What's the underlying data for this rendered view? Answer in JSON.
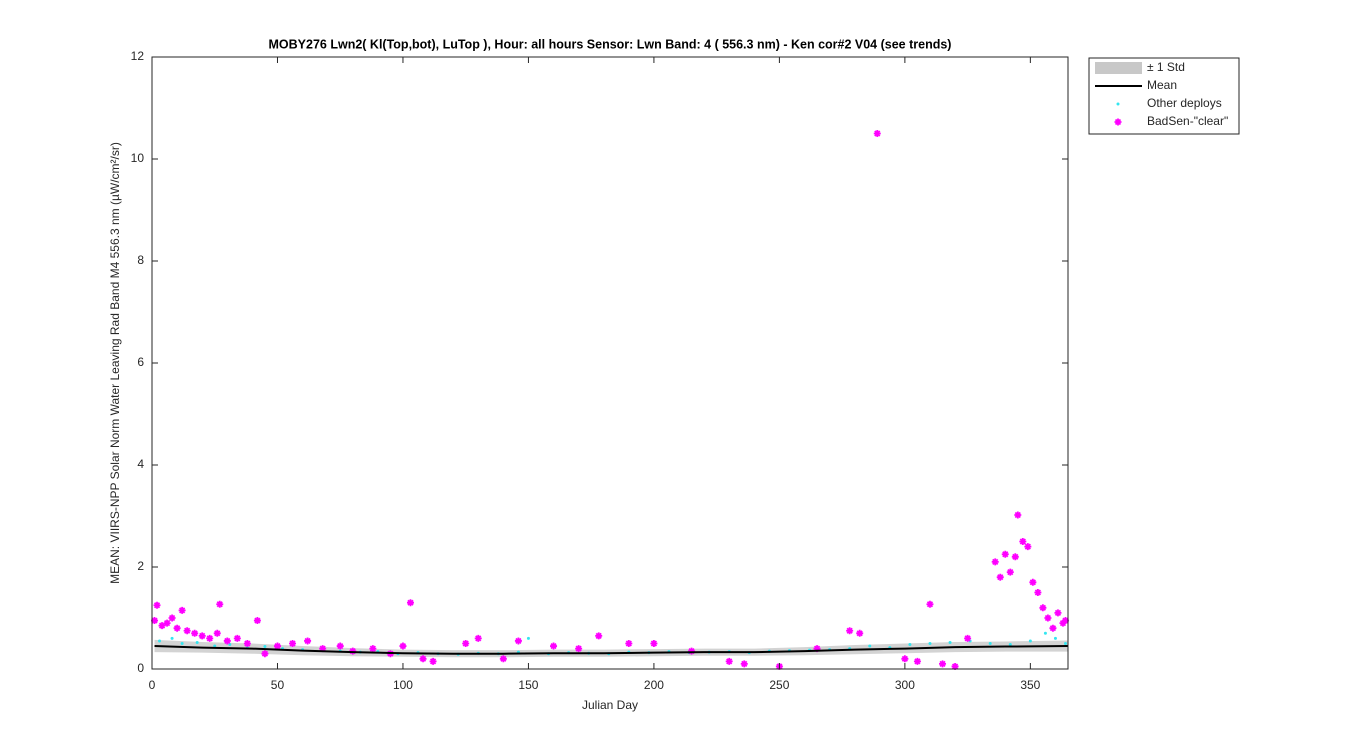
{
  "chart_data": {
    "type": "scatter",
    "title": "MOBY276   Lwn2( Kl(Top,bot), LuTop ),   Hour: all hours  Sensor: Lwn Band: 4 ( 556.3 nm)  - Ken cor#2 V04 (see trends)",
    "xlabel": "Julian Day",
    "ylabel": "MEAN: VIIRS-NPP Solar Norm Water Leaving Rad Band M4 556.3 nm (µW/cm²/sr)",
    "xlim": [
      0,
      365
    ],
    "ylim": [
      0,
      12
    ],
    "xticks": [
      0,
      50,
      100,
      150,
      200,
      250,
      300,
      350
    ],
    "yticks": [
      0,
      2,
      4,
      6,
      8,
      10,
      12
    ],
    "series": [
      {
        "name": "± 1 Std",
        "style": "band",
        "color": "#c8c8c8",
        "x": [
          1,
          20,
          40,
          60,
          80,
          100,
          120,
          140,
          160,
          180,
          200,
          220,
          240,
          260,
          280,
          300,
          320,
          340,
          365
        ],
        "lower": [
          0.33,
          0.32,
          0.3,
          0.27,
          0.25,
          0.24,
          0.23,
          0.23,
          0.24,
          0.24,
          0.25,
          0.26,
          0.26,
          0.27,
          0.29,
          0.31,
          0.33,
          0.34,
          0.34
        ],
        "upper": [
          0.57,
          0.53,
          0.5,
          0.45,
          0.41,
          0.38,
          0.37,
          0.37,
          0.38,
          0.38,
          0.39,
          0.4,
          0.4,
          0.43,
          0.47,
          0.5,
          0.53,
          0.54,
          0.56
        ]
      },
      {
        "name": "Mean",
        "style": "line",
        "color": "#000000",
        "x": [
          1,
          20,
          40,
          60,
          80,
          100,
          120,
          140,
          160,
          180,
          200,
          220,
          240,
          260,
          280,
          300,
          320,
          340,
          365
        ],
        "values": [
          0.45,
          0.42,
          0.4,
          0.36,
          0.33,
          0.31,
          0.3,
          0.3,
          0.31,
          0.31,
          0.32,
          0.33,
          0.33,
          0.35,
          0.38,
          0.4,
          0.43,
          0.44,
          0.45
        ]
      },
      {
        "name": "Other deploys",
        "style": "dot",
        "color": "#33e6f0",
        "x": [
          3,
          8,
          12,
          18,
          25,
          31,
          38,
          45,
          52,
          60,
          68,
          75,
          83,
          90,
          98,
          106,
          114,
          122,
          130,
          138,
          146,
          150,
          158,
          166,
          174,
          182,
          190,
          198,
          206,
          214,
          222,
          230,
          238,
          246,
          254,
          262,
          270,
          278,
          286,
          294,
          302,
          310,
          318,
          326,
          334,
          342,
          350,
          356,
          360,
          364
        ],
        "values": [
          0.55,
          0.6,
          0.5,
          0.52,
          0.45,
          0.48,
          0.42,
          0.44,
          0.4,
          0.38,
          0.36,
          0.35,
          0.33,
          0.34,
          0.3,
          0.32,
          0.3,
          0.29,
          0.31,
          0.3,
          0.33,
          0.6,
          0.3,
          0.32,
          0.31,
          0.3,
          0.33,
          0.32,
          0.34,
          0.32,
          0.33,
          0.34,
          0.32,
          0.35,
          0.36,
          0.37,
          0.38,
          0.4,
          0.45,
          0.42,
          0.48,
          0.5,
          0.52,
          0.55,
          0.5,
          0.48,
          0.55,
          0.7,
          0.6,
          0.5
        ]
      },
      {
        "name": "BadSen-\"clear\"",
        "style": "star",
        "color": "#ff00ff",
        "x": [
          1,
          2,
          4,
          6,
          8,
          10,
          12,
          14,
          17,
          20,
          23,
          26,
          27,
          30,
          34,
          38,
          42,
          45,
          50,
          56,
          62,
          68,
          75,
          80,
          88,
          95,
          100,
          103,
          108,
          112,
          125,
          130,
          140,
          146,
          160,
          170,
          178,
          190,
          200,
          215,
          230,
          236,
          250,
          265,
          278,
          282,
          289,
          300,
          305,
          310,
          315,
          320,
          325,
          336,
          338,
          340,
          342,
          344,
          345,
          347,
          349,
          351,
          353,
          355,
          357,
          359,
          361,
          363,
          364
        ],
        "values": [
          0.95,
          1.25,
          0.85,
          0.9,
          1.0,
          0.8,
          1.15,
          0.75,
          0.7,
          0.65,
          0.6,
          0.7,
          1.27,
          0.55,
          0.6,
          0.5,
          0.95,
          0.3,
          0.45,
          0.5,
          0.55,
          0.4,
          0.45,
          0.35,
          0.4,
          0.3,
          0.45,
          1.3,
          0.2,
          0.15,
          0.5,
          0.6,
          0.2,
          0.55,
          0.45,
          0.4,
          0.65,
          0.5,
          0.5,
          0.35,
          0.15,
          0.1,
          0.05,
          0.4,
          0.75,
          0.7,
          10.5,
          0.2,
          0.15,
          1.27,
          0.1,
          0.05,
          0.6,
          2.1,
          1.8,
          2.25,
          1.9,
          2.2,
          3.02,
          2.5,
          2.4,
          1.7,
          1.5,
          1.2,
          1.0,
          0.8,
          1.1,
          0.9,
          0.95
        ]
      }
    ],
    "legend": "outside-northeast"
  }
}
